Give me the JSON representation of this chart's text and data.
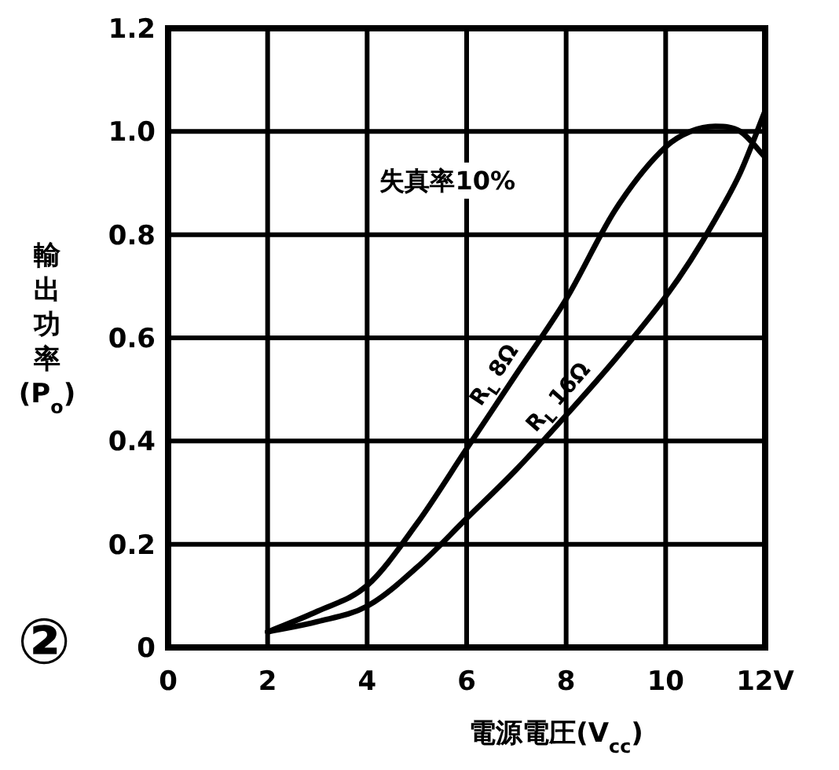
{
  "chart_data": {
    "type": "line",
    "xlabel": "電源電圧(V$_{cc}$)",
    "ylabel": "輸出功率(P$_{o}$)",
    "annotations": [
      "失真率10%",
      "②"
    ],
    "x": [
      2,
      3,
      4,
      5,
      6,
      7,
      8,
      9,
      10,
      10.5,
      11,
      11.5,
      12
    ],
    "series": [
      {
        "name": "R$_{L}$ 8Ω",
        "color": "#000000",
        "values": [
          0.03,
          0.07,
          0.12,
          0.24,
          0.385,
          0.53,
          0.675,
          0.85,
          0.97,
          1.0,
          1.01,
          1.0,
          0.95
        ]
      },
      {
        "name": "R$_{L}$ 16Ω",
        "color": "#000000",
        "values": [
          0.03,
          0.05,
          0.08,
          0.155,
          0.25,
          0.345,
          0.45,
          0.56,
          0.68,
          0.75,
          0.83,
          0.92,
          1.04
        ]
      }
    ],
    "xlim": [
      0,
      12
    ],
    "xticks": [
      0,
      2,
      4,
      6,
      8,
      10,
      {
        "value": 12,
        "label": "12V"
      }
    ],
    "ylim": [
      0,
      1.2
    ],
    "yticks": [
      0,
      0.2,
      0.4,
      0.6,
      0.8,
      {
        "value": 1,
        "label": "1.0"
      },
      1.2
    ],
    "grid": true,
    "legend": false,
    "marker": "none",
    "line_style": "solid"
  }
}
